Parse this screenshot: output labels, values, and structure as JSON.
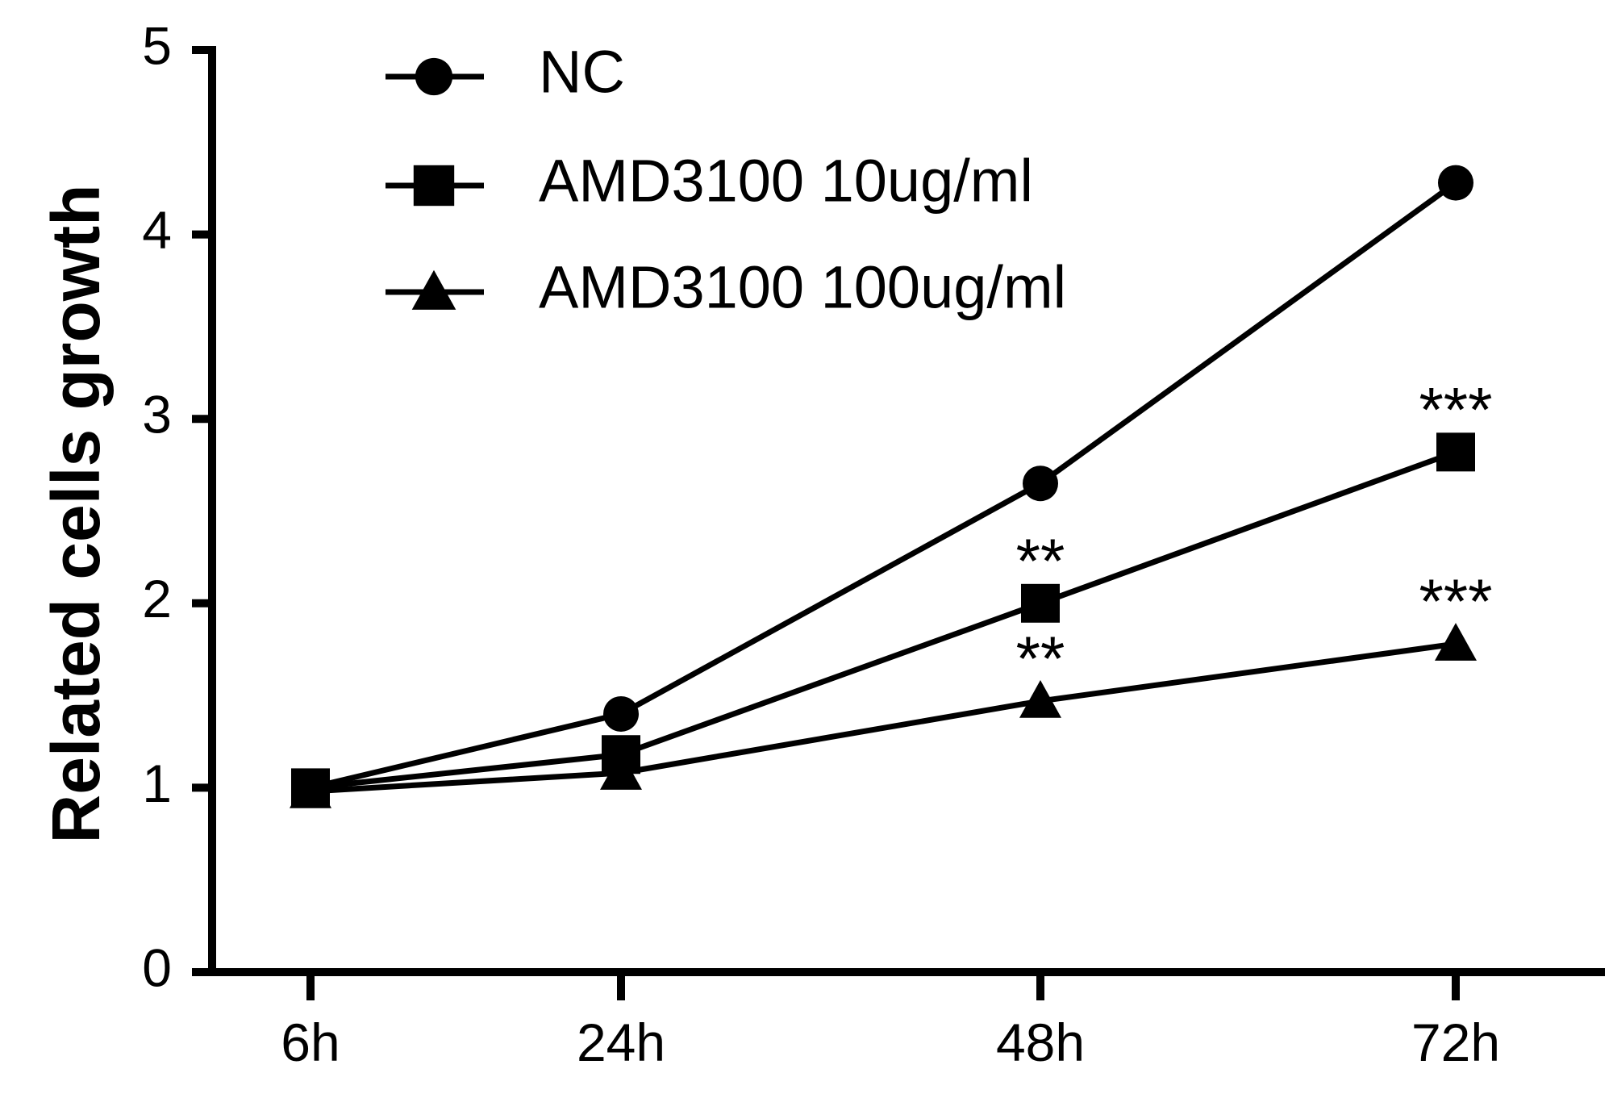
{
  "chart_data": {
    "type": "line",
    "title": "",
    "xlabel": "",
    "ylabel": "Related cells growth",
    "categories": [
      "6h",
      "24h",
      "48h",
      "72h"
    ],
    "ylim": [
      0,
      5
    ],
    "yticks": [
      "0",
      "1",
      "2",
      "3",
      "4",
      "5"
    ],
    "grid": false,
    "legend_position": "top-left",
    "series": [
      {
        "name": "NC",
        "marker": "circle",
        "values": [
          1.0,
          1.4,
          2.65,
          4.28
        ]
      },
      {
        "name": "AMD3100 10ug/ml",
        "marker": "square",
        "values": [
          1.0,
          1.18,
          2.0,
          2.82
        ]
      },
      {
        "name": "AMD3100 100ug/ml",
        "marker": "triangle",
        "values": [
          0.98,
          1.08,
          1.47,
          1.78
        ]
      }
    ],
    "annotations": [
      {
        "text": "**",
        "category": "48h",
        "series": "AMD3100 10ug/ml"
      },
      {
        "text": "***",
        "category": "72h",
        "series": "AMD3100 10ug/ml"
      },
      {
        "text": "**",
        "category": "48h",
        "series": "AMD3100 100ug/ml"
      },
      {
        "text": "***",
        "category": "72h",
        "series": "AMD3100 100ug/ml"
      }
    ],
    "colors": {
      "line": "#000000",
      "background": "#ffffff"
    }
  }
}
